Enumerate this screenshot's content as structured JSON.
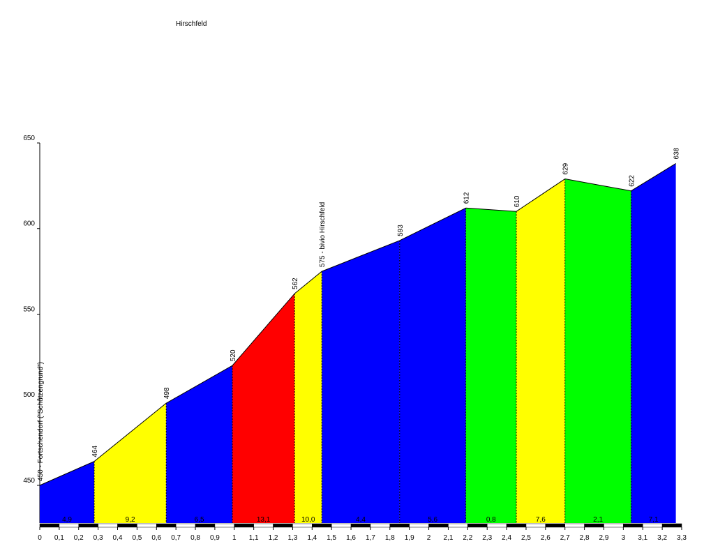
{
  "chart_data": {
    "type": "profile",
    "title": "Hirschfeld",
    "x": [
      0,
      0.28,
      0.65,
      0.99,
      1.31,
      1.45,
      1.85,
      2.19,
      2.45,
      2.7,
      3.04,
      3.27
    ],
    "values": [
      450,
      464,
      498,
      520,
      562,
      575,
      593,
      612,
      610,
      629,
      622,
      638
    ],
    "value_labels": [
      "450 - Fortschendorf (\"Schützengrund\")",
      "464",
      "498",
      "520",
      "562",
      "575 - bivio Hirschfeld",
      "593",
      "612",
      "610",
      "629",
      "622",
      "638"
    ],
    "segments": {
      "values": [
        4.9,
        9.2,
        6.5,
        13.1,
        10.0,
        4.4,
        5.6,
        0.8,
        7.6,
        2.1,
        7.1
      ],
      "value_labels": [
        "4,9",
        "9,2",
        "6,5",
        "13,1",
        "10,0",
        "4,4",
        "5,6",
        "0,8",
        "7,6",
        "2,1",
        "7,1"
      ],
      "colors": [
        "#0000ff",
        "#ffff00",
        "#0000ff",
        "#ff0000",
        "#ffff00",
        "#0000ff",
        "#0000ff",
        "#00ff00",
        "#ffff00",
        "#00ff00",
        "#0000ff"
      ]
    },
    "xlim": [
      0,
      3.3
    ],
    "xticks": [
      0,
      {
        "value": 0.1,
        "label": "0,1"
      },
      {
        "value": 0.2,
        "label": "0,2"
      },
      {
        "value": 0.3,
        "label": "0,3"
      },
      {
        "value": 0.4,
        "label": "0,4"
      },
      {
        "value": 0.5,
        "label": "0,5"
      },
      {
        "value": 0.6,
        "label": "0,6"
      },
      {
        "value": 0.7,
        "label": "0,7"
      },
      {
        "value": 0.8,
        "label": "0,8"
      },
      {
        "value": 0.9,
        "label": "0,9"
      },
      1,
      {
        "value": 1.1,
        "label": "1,1"
      },
      {
        "value": 1.2,
        "label": "1,2"
      },
      {
        "value": 1.3,
        "label": "1,3"
      },
      {
        "value": 1.4,
        "label": "1,4"
      },
      {
        "value": 1.5,
        "label": "1,5"
      },
      {
        "value": 1.6,
        "label": "1,6"
      },
      {
        "value": 1.7,
        "label": "1,7"
      },
      {
        "value": 1.8,
        "label": "1,8"
      },
      {
        "value": 1.9,
        "label": "1,9"
      },
      2,
      {
        "value": 2.1,
        "label": "2,1"
      },
      {
        "value": 2.2,
        "label": "2,2"
      },
      {
        "value": 2.3,
        "label": "2,3"
      },
      {
        "value": 2.4,
        "label": "2,4"
      },
      {
        "value": 2.5,
        "label": "2,5"
      },
      {
        "value": 2.6,
        "label": "2,6"
      },
      {
        "value": 2.7,
        "label": "2,7"
      },
      {
        "value": 2.8,
        "label": "2,8"
      },
      {
        "value": 2.9,
        "label": "2,9"
      },
      3,
      {
        "value": 3.1,
        "label": "3,1"
      },
      {
        "value": 3.2,
        "label": "3,2"
      },
      {
        "value": 3.3,
        "label": "3,3"
      }
    ],
    "ylim": [
      428,
      650
    ],
    "yticks": [
      450,
      500,
      550,
      600,
      650
    ]
  }
}
